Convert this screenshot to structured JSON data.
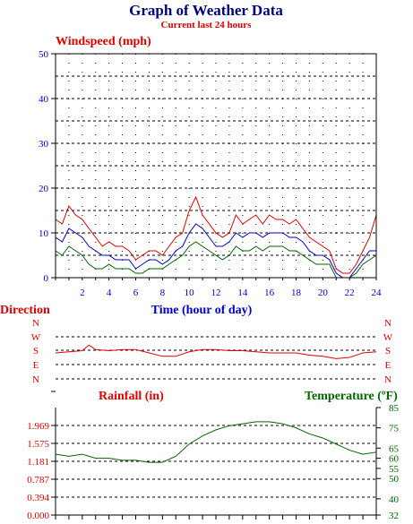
{
  "header": {
    "title": "Graph of Weather Data",
    "subtitle": "Current last 24 hours"
  },
  "colors": {
    "title": "#000080",
    "red": "#dd0000",
    "blue": "#0000cc",
    "green": "#006600",
    "axis": "#000000",
    "grid": "#000000"
  },
  "chart_data": [
    {
      "type": "line",
      "title": "Windspeed (mph)",
      "xlabel": "Time (hour of day)",
      "ylabel": "Windspeed (mph)",
      "xlim": [
        0,
        24
      ],
      "ylim": [
        0,
        50
      ],
      "x_ticks": [
        2,
        4,
        6,
        8,
        10,
        12,
        14,
        16,
        18,
        20,
        22,
        24
      ],
      "y_ticks": [
        0,
        10,
        20,
        30,
        40,
        50
      ],
      "grid": true,
      "series": [
        {
          "color": "red",
          "x": [
            0,
            0.5,
            1,
            1.5,
            2,
            2.5,
            3,
            3.5,
            4,
            4.5,
            5,
            5.5,
            6,
            6.5,
            7,
            7.5,
            8,
            8.5,
            9,
            9.5,
            10,
            10.5,
            11,
            11.5,
            12,
            12.5,
            13,
            13.5,
            14,
            14.5,
            15,
            15.5,
            16,
            16.5,
            17,
            17.5,
            18,
            18.5,
            19,
            19.5,
            20,
            20.5,
            21,
            21.5,
            22,
            22.5,
            23,
            23.5,
            24
          ],
          "values": [
            13,
            12,
            16,
            14,
            13,
            11,
            9,
            7,
            8,
            7,
            7,
            6,
            4,
            5,
            6,
            6,
            5,
            7,
            9,
            10,
            15,
            18,
            14,
            12,
            10,
            9,
            10,
            14,
            12,
            13,
            14,
            12,
            14,
            13,
            13,
            12,
            13,
            11,
            9,
            8,
            7,
            6,
            2,
            1,
            1,
            3,
            6,
            9,
            14
          ]
        },
        {
          "color": "blue",
          "x": [
            0,
            0.5,
            1,
            1.5,
            2,
            2.5,
            3,
            3.5,
            4,
            4.5,
            5,
            5.5,
            6,
            6.5,
            7,
            7.5,
            8,
            8.5,
            9,
            9.5,
            10,
            10.5,
            11,
            11.5,
            12,
            12.5,
            13,
            13.5,
            14,
            14.5,
            15,
            15.5,
            16,
            16.5,
            17,
            17.5,
            18,
            18.5,
            19,
            19.5,
            20,
            20.5,
            21,
            21.5,
            22,
            22.5,
            23,
            23.5,
            24
          ],
          "values": [
            9,
            8,
            11,
            10,
            9,
            7,
            6,
            5,
            5,
            4,
            4,
            4,
            2,
            3,
            4,
            4,
            3,
            4,
            6,
            7,
            10,
            12,
            11,
            9,
            7,
            7,
            8,
            10,
            9,
            10,
            10,
            9,
            10,
            10,
            10,
            9,
            9,
            8,
            6,
            5,
            5,
            4,
            1,
            0,
            0,
            2,
            4,
            6,
            6
          ]
        },
        {
          "color": "green",
          "x": [
            0,
            0.5,
            1,
            1.5,
            2,
            2.5,
            3,
            3.5,
            4,
            4.5,
            5,
            5.5,
            6,
            6.5,
            7,
            7.5,
            8,
            8.5,
            9,
            9.5,
            10,
            10.5,
            11,
            11.5,
            12,
            12.5,
            13,
            13.5,
            14,
            14.5,
            15,
            15.5,
            16,
            16.5,
            17,
            17.5,
            18,
            18.5,
            19,
            19.5,
            20,
            20.5,
            21,
            21.5,
            22,
            22.5,
            23,
            23.5,
            24
          ],
          "values": [
            6,
            5,
            7,
            6,
            5,
            3,
            2,
            2,
            3,
            2,
            2,
            2,
            1,
            1,
            2,
            2,
            2,
            3,
            4,
            5,
            7,
            8,
            7,
            6,
            5,
            4,
            5,
            7,
            6,
            6,
            7,
            6,
            7,
            7,
            7,
            6,
            6,
            5,
            4,
            3,
            3,
            3,
            0,
            0,
            0,
            1,
            3,
            4,
            5
          ]
        }
      ]
    },
    {
      "type": "line",
      "title": "Direction",
      "ylim": [
        0,
        5
      ],
      "y_categories": [
        "N",
        "E",
        "S",
        "W",
        "N"
      ],
      "y_ticks_left": [
        "N",
        "W",
        "S",
        "E",
        "N"
      ],
      "y_ticks_right": [
        "N",
        "W",
        "S",
        "E",
        "N"
      ],
      "series": [
        {
          "color": "red",
          "x": [
            0,
            1,
            2,
            2.5,
            3,
            4,
            5,
            6,
            7,
            8,
            9,
            10,
            11,
            12,
            13,
            14,
            15,
            16,
            17,
            18,
            19,
            20,
            21,
            22,
            23,
            24
          ],
          "values": [
            2.3,
            2.4,
            2.5,
            3.0,
            2.6,
            2.5,
            2.6,
            2.6,
            2.3,
            2.0,
            2.0,
            2.4,
            2.6,
            2.6,
            2.5,
            2.5,
            2.4,
            2.3,
            2.3,
            2.3,
            2.1,
            2.0,
            1.8,
            1.9,
            2.3,
            2.4
          ]
        }
      ]
    },
    {
      "type": "line",
      "title": "Rainfall (in)",
      "ylabel": "Rainfall (in)",
      "ylim": [
        0,
        2.362
      ],
      "y_ticks": [
        "0.000",
        "0.394",
        "0.787",
        "1.181",
        "1.575",
        "1.969"
      ],
      "series": [
        {
          "name": "Rainfall (in)",
          "color": "red",
          "values": []
        }
      ]
    },
    {
      "type": "line",
      "title": "Temperature (ºF)",
      "y2label": "Temperature (ºF)",
      "y2lim": [
        32,
        85
      ],
      "y2_ticks": [
        32,
        40,
        50,
        55,
        60,
        65,
        75,
        85
      ],
      "series": [
        {
          "color": "green",
          "x": [
            0,
            1,
            2,
            3,
            4,
            5,
            6,
            7,
            8,
            9,
            10,
            11,
            12,
            13,
            14,
            15,
            16,
            17,
            18,
            19,
            20,
            21,
            22,
            23,
            24
          ],
          "values": [
            62,
            61,
            62,
            60,
            60,
            59,
            59,
            58,
            58,
            61,
            67,
            71,
            74,
            76,
            77,
            78,
            78,
            77,
            75,
            72,
            70,
            67,
            64,
            62,
            63
          ]
        }
      ]
    }
  ]
}
